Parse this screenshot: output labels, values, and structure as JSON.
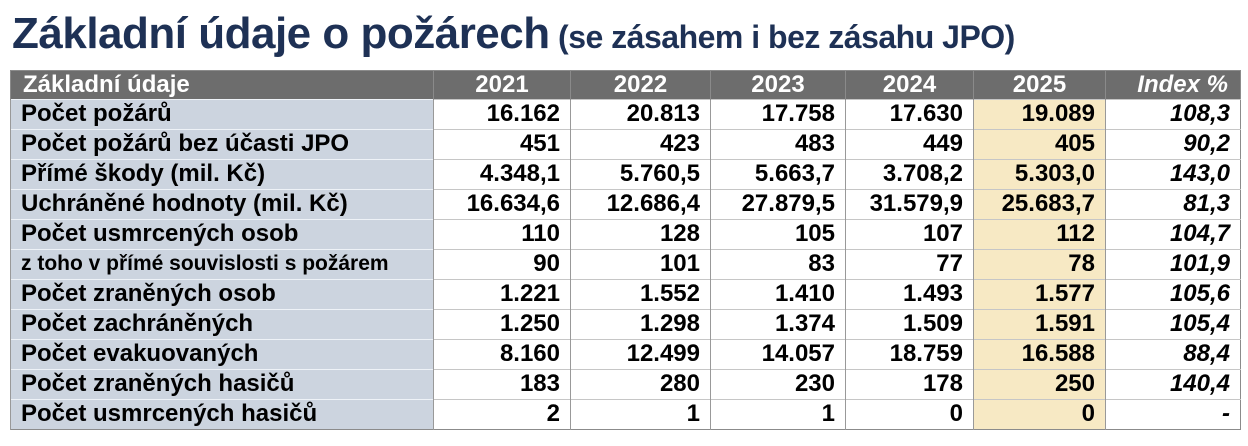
{
  "title": {
    "main": "Základní údaje o požárech",
    "suffix": " (se zásahem i bez zásahu JPO)"
  },
  "colors": {
    "title_color": "#1e3155",
    "header_bg": "#6d6d6d",
    "header_text": "#ffffff",
    "label_bg": "#ccd4df",
    "highlight_bg": "#f7e9c4",
    "grid": "#999999",
    "border": "#8b8b8b"
  },
  "table": {
    "header": {
      "label": "Základní údaje",
      "years": [
        "2021",
        "2022",
        "2023",
        "2024",
        "2025"
      ],
      "index": "Index %"
    },
    "highlighted_year": "2025",
    "rows": [
      {
        "label": "Počet požárů",
        "small": false,
        "values": [
          "16.162",
          "20.813",
          "17.758",
          "17.630",
          "19.089"
        ],
        "index": "108,3"
      },
      {
        "label": "Počet požárů bez účasti JPO",
        "small": false,
        "values": [
          "451",
          "423",
          "483",
          "449",
          "405"
        ],
        "index": "90,2"
      },
      {
        "label": "Přímé škody (mil. Kč)",
        "small": false,
        "values": [
          "4.348,1",
          "5.760,5",
          "5.663,7",
          "3.708,2",
          "5.303,0"
        ],
        "index": "143,0"
      },
      {
        "label": "Uchráněné hodnoty (mil. Kč)",
        "small": false,
        "values": [
          "16.634,6",
          "12.686,4",
          "27.879,5",
          "31.579,9",
          "25.683,7"
        ],
        "index": "81,3"
      },
      {
        "label": "Počet usmrcených osob",
        "small": false,
        "values": [
          "110",
          "128",
          "105",
          "107",
          "112"
        ],
        "index": "104,7"
      },
      {
        "label": "z toho v přímé souvislosti s požárem",
        "small": true,
        "values": [
          "90",
          "101",
          "83",
          "77",
          "78"
        ],
        "index": "101,9"
      },
      {
        "label": "Počet zraněných osob",
        "small": false,
        "values": [
          "1.221",
          "1.552",
          "1.410",
          "1.493",
          "1.577"
        ],
        "index": "105,6"
      },
      {
        "label": "Počet zachráněných",
        "small": false,
        "values": [
          "1.250",
          "1.298",
          "1.374",
          "1.509",
          "1.591"
        ],
        "index": "105,4"
      },
      {
        "label": "Počet evakuovaných",
        "small": false,
        "values": [
          "8.160",
          "12.499",
          "14.057",
          "18.759",
          "16.588"
        ],
        "index": "88,4"
      },
      {
        "label": "Počet zraněných hasičů",
        "small": false,
        "values": [
          "183",
          "280",
          "230",
          "178",
          "250"
        ],
        "index": "140,4"
      },
      {
        "label": "Počet usmrcených hasičů",
        "small": false,
        "values": [
          "2",
          "1",
          "1",
          "0",
          "0"
        ],
        "index": "-"
      }
    ]
  },
  "chart_data": {
    "type": "table",
    "title": "Základní údaje o požárech (se zásahem i bez zásahu JPO)",
    "columns": [
      "Základní údaje",
      "2021",
      "2022",
      "2023",
      "2024",
      "2025",
      "Index %"
    ],
    "highlighted_column": "2025",
    "rows": [
      [
        "Počet požárů",
        "16.162",
        "20.813",
        "17.758",
        "17.630",
        "19.089",
        "108,3"
      ],
      [
        "Počet požárů bez účasti JPO",
        "451",
        "423",
        "483",
        "449",
        "405",
        "90,2"
      ],
      [
        "Přímé škody (mil. Kč)",
        "4.348,1",
        "5.760,5",
        "5.663,7",
        "3.708,2",
        "5.303,0",
        "143,0"
      ],
      [
        "Uchráněné hodnoty (mil. Kč)",
        "16.634,6",
        "12.686,4",
        "27.879,5",
        "31.579,9",
        "25.683,7",
        "81,3"
      ],
      [
        "Počet usmrcených osob",
        "110",
        "128",
        "105",
        "107",
        "112",
        "104,7"
      ],
      [
        "z toho v přímé souvislosti s požárem",
        "90",
        "101",
        "83",
        "77",
        "78",
        "101,9"
      ],
      [
        "Počet zraněných osob",
        "1.221",
        "1.552",
        "1.410",
        "1.493",
        "1.577",
        "105,6"
      ],
      [
        "Počet zachráněných",
        "1.250",
        "1.298",
        "1.374",
        "1.509",
        "1.591",
        "105,4"
      ],
      [
        "Počet evakuovaných",
        "8.160",
        "12.499",
        "14.057",
        "18.759",
        "16.588",
        "88,4"
      ],
      [
        "Počet zraněných hasičů",
        "183",
        "280",
        "230",
        "178",
        "250",
        "140,4"
      ],
      [
        "Počet usmrcených hasičů",
        "2",
        "1",
        "1",
        "0",
        "0",
        "-"
      ]
    ]
  }
}
